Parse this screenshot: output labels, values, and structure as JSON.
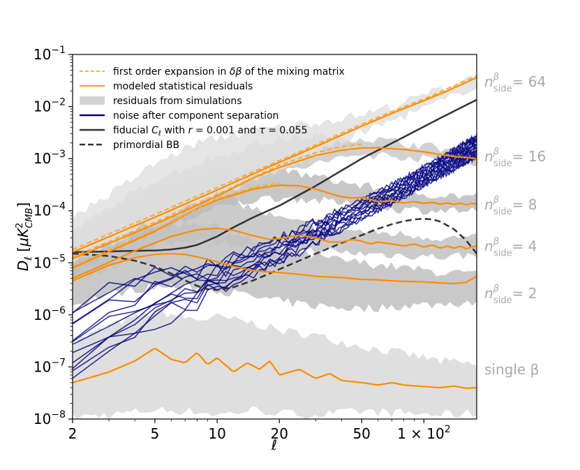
{
  "chart_data": {
    "type": "line",
    "title": "",
    "xlabel": "ℓ",
    "ylabel": "D_ℓ [μK²_CMB]",
    "ylabel_parts": {
      "main": "D",
      "sub1": "ℓ",
      "open": " [",
      "mu": "μ",
      "k": "K",
      "sup": "2",
      "sub2": "CMB",
      "close": "]"
    },
    "xscale": "log",
    "yscale": "log",
    "xlim": [
      2,
      180
    ],
    "ylim": [
      1e-08,
      0.1
    ],
    "x_ticks": [
      2,
      5,
      10,
      20,
      50,
      100
    ],
    "x_tick_labels": [
      "2",
      "5",
      "10",
      "20",
      "50",
      "1 × 10²"
    ],
    "x_tick_100": {
      "base": "1 × 10",
      "exp": "2"
    },
    "y_ticks": [
      1e-08,
      1e-07,
      1e-06,
      1e-05,
      0.0001,
      0.001,
      0.01,
      0.1
    ],
    "y_tick_labels": [
      {
        "base": "10",
        "exp": "−8"
      },
      {
        "base": "10",
        "exp": "−7"
      },
      {
        "base": "10",
        "exp": "−6"
      },
      {
        "base": "10",
        "exp": "−5"
      },
      {
        "base": "10",
        "exp": "−4"
      },
      {
        "base": "10",
        "exp": "−3"
      },
      {
        "base": "10",
        "exp": "−2"
      },
      {
        "base": "10",
        "exp": "−1"
      }
    ],
    "legend": {
      "position": "upper-left",
      "entries": [
        {
          "label_parts": [
            "first order expansion in ",
            "δβ",
            " of the mixing matrix"
          ],
          "style": "dashed",
          "color": "#ffa726"
        },
        {
          "label_parts": [
            "modeled statistical residuals"
          ],
          "style": "solid",
          "color": "#ff8c00"
        },
        {
          "label_parts": [
            "residuals from simulations"
          ],
          "style": "band",
          "color": "#d3d3d3"
        },
        {
          "label_parts": [
            "noise after component separation"
          ],
          "style": "solid",
          "color": "#000080"
        },
        {
          "label_parts": [
            "fiducial ",
            "C",
            "ℓ",
            " with ",
            "r",
            " = 0.001 and ",
            "τ",
            " = 0.055"
          ],
          "style": "solid",
          "color": "#333333"
        },
        {
          "label_parts": [
            "primordial BB"
          ],
          "style": "dashed",
          "color": "#333333"
        }
      ]
    },
    "right_labels": [
      {
        "prefix": "n",
        "sup": "β",
        "sub": "side",
        "value": "= 64",
        "y": 0.03
      },
      {
        "prefix": "n",
        "sup": "β",
        "sub": "side",
        "value": "= 16",
        "y": 0.0011
      },
      {
        "prefix": "n",
        "sup": "β",
        "sub": "side",
        "value": "= 8",
        "y": 0.00013
      },
      {
        "prefix": "n",
        "sup": "β",
        "sub": "side",
        "value": "= 4",
        "y": 2.1e-05
      },
      {
        "prefix": "n",
        "sup": "β",
        "sub": "side",
        "value": "= 2",
        "y": 2.6e-06
      },
      {
        "text": "single β",
        "y": 9e-08
      }
    ],
    "series": [
      {
        "name": "fiducial C_ell (r=0.001, tau=0.055)",
        "style": "solid",
        "color": "#333333",
        "width": 2.5,
        "x": [
          2,
          3,
          4,
          5,
          6,
          7,
          8,
          10,
          12,
          15,
          20,
          30,
          50,
          80,
          120,
          180
        ],
        "y": [
          1.6e-05,
          1.65e-05,
          1.7e-05,
          1.72e-05,
          1.8e-05,
          1.95e-05,
          2.2e-05,
          3.2e-05,
          4.8e-05,
          7.5e-05,
          0.000125,
          0.0003,
          0.001,
          0.0026,
          0.006,
          0.0135
        ]
      },
      {
        "name": "primordial BB",
        "style": "dashed",
        "color": "#333333",
        "width": 2.5,
        "x": [
          2,
          3,
          4,
          5,
          6,
          7,
          8,
          9,
          10,
          12,
          15,
          20,
          30,
          40,
          50,
          60,
          70,
          80,
          90,
          100,
          110,
          120,
          140,
          160,
          180
        ],
        "y": [
          1.5e-05,
          1.35e-05,
          1.1e-05,
          8.5e-06,
          6.2e-06,
          4.6e-06,
          3.6e-06,
          3.1e-06,
          3e-06,
          3.4e-06,
          4.6e-06,
          7.5e-06,
          1.5e-05,
          2.4e-05,
          3.4e-05,
          4.5e-05,
          5.5e-05,
          6.3e-05,
          6.8e-05,
          7e-05,
          6.8e-05,
          6.2e-05,
          4.4e-05,
          2.7e-05,
          1.5e-05
        ]
      },
      {
        "name": "modeled residuals nside=64",
        "style": "solid",
        "color": "#ff8c00",
        "width": 2.2,
        "x": [
          2,
          5,
          10,
          20,
          30,
          50,
          70,
          100,
          130,
          180
        ],
        "y": [
          1.6e-05,
          7.5e-05,
          0.00025,
          0.00085,
          0.0017,
          0.0042,
          0.0074,
          0.013,
          0.02,
          0.036
        ]
      },
      {
        "name": "first order expansion nside=64",
        "style": "dashed",
        "color": "#ffa726",
        "width": 2,
        "x": [
          2,
          5,
          10,
          20,
          30,
          50,
          70,
          100,
          130,
          180
        ],
        "y": [
          1.8e-05,
          8.5e-05,
          0.00028,
          0.00092,
          0.00185,
          0.0046,
          0.008,
          0.014,
          0.022,
          0.039
        ]
      },
      {
        "name": "modeled residuals nside=16",
        "style": "solid",
        "color": "#ff8c00",
        "width": 2.2,
        "x": [
          2,
          5,
          10,
          15,
          20,
          30,
          40,
          50,
          60,
          70,
          80,
          100,
          120,
          140,
          160,
          180
        ],
        "y": [
          1.2e-05,
          5.5e-05,
          0.00019,
          0.00043,
          0.00068,
          0.00115,
          0.00145,
          0.0016,
          0.00162,
          0.00155,
          0.0015,
          0.00135,
          0.0012,
          0.0011,
          0.00105,
          0.001
        ]
      },
      {
        "name": "first order expansion nside=16",
        "style": "dashed",
        "color": "#ffa726",
        "width": 2,
        "x": [
          2,
          5,
          10,
          20,
          30,
          40,
          50
        ],
        "y": [
          1.3e-05,
          6e-05,
          0.000205,
          0.00075,
          0.0013,
          0.0017,
          0.0019
        ]
      },
      {
        "name": "modeled residuals nside=8",
        "style": "solid",
        "color": "#ff8c00",
        "width": 2.2,
        "x": [
          2,
          5,
          8,
          10,
          15,
          20,
          25,
          30,
          35,
          40,
          45,
          50,
          55,
          60,
          70,
          80,
          90,
          100,
          110,
          120,
          130,
          140,
          150,
          160,
          170,
          180
        ],
        "y": [
          8e-06,
          4e-05,
          0.00011,
          0.00016,
          0.00026,
          0.00031,
          0.0003,
          0.00026,
          0.000215,
          0.000185,
          0.000175,
          0.00018,
          0.000165,
          0.00015,
          0.000155,
          0.00014,
          0.00015,
          0.000138,
          0.000145,
          0.000133,
          0.000142,
          0.000132,
          0.00014,
          0.00013,
          0.000138,
          0.000135
        ]
      },
      {
        "name": "first order expansion nside=8",
        "style": "dashed",
        "color": "#ffa726",
        "width": 2,
        "x": [
          2,
          5,
          10,
          15,
          20
        ],
        "y": [
          8.5e-06,
          4.3e-05,
          0.00017,
          0.00028,
          0.00034
        ]
      },
      {
        "name": "modeled residuals nside=4",
        "style": "solid",
        "color": "#ff8c00",
        "width": 2.2,
        "x": [
          2,
          4,
          6,
          8,
          10,
          12,
          15,
          18,
          20,
          25,
          30,
          35,
          40,
          45,
          50,
          55,
          60,
          70,
          80,
          90,
          100,
          110,
          120,
          130,
          140,
          150,
          160,
          170,
          180
        ],
        "y": [
          5e-06,
          1.7e-05,
          3.2e-05,
          4.3e-05,
          4.6e-05,
          4.2e-05,
          3.3e-05,
          2.8e-05,
          2.9e-05,
          3.4e-05,
          3e-05,
          2.5e-05,
          2.5e-05,
          2.8e-05,
          2.6e-05,
          2.3e-05,
          2.5e-05,
          2.3e-05,
          2.1e-05,
          2.3e-05,
          2e-05,
          2.2e-05,
          1.9e-05,
          2.1e-05,
          1.9e-05,
          2.1e-05,
          1.85e-05,
          2e-05,
          2.1e-05
        ]
      },
      {
        "name": "modeled residuals nside=2",
        "style": "solid",
        "color": "#ff8c00",
        "width": 2.2,
        "x": [
          2,
          3,
          4,
          5,
          6,
          7,
          8,
          10,
          12,
          15,
          20,
          25,
          30,
          40,
          50,
          60,
          70,
          80,
          100,
          120,
          140,
          160,
          180
        ],
        "y": [
          4.5e-06,
          9e-06,
          1.25e-05,
          1.45e-05,
          1.5e-05,
          1.45e-05,
          1.3e-05,
          1.05e-05,
          8.5e-06,
          7e-06,
          6.5e-06,
          6e-06,
          5.5e-06,
          5.2e-06,
          4.8e-06,
          4.7e-06,
          4.5e-06,
          4.4e-06,
          4.3e-06,
          4.1e-06,
          4e-06,
          4.2e-06,
          5.5e-06
        ]
      },
      {
        "name": "modeled residuals single beta",
        "style": "solid",
        "color": "#ff8c00",
        "width": 2.2,
        "x": [
          2,
          3,
          4,
          5,
          6,
          7,
          8,
          9,
          10,
          12,
          14,
          16,
          18,
          20,
          25,
          30,
          35,
          40,
          50,
          60,
          70,
          80,
          100,
          120,
          140,
          160,
          180
        ],
        "y": [
          5e-08,
          8e-08,
          1.3e-07,
          2.3e-07,
          1.4e-07,
          1.2e-07,
          1.9e-07,
          1.1e-07,
          1.5e-07,
          8e-08,
          1.2e-07,
          9e-08,
          1.3e-07,
          7e-08,
          9e-08,
          6e-08,
          7.5e-08,
          5.5e-08,
          5e-08,
          4.5e-08,
          5e-08,
          4.5e-08,
          4.2e-08,
          4e-08,
          4.3e-08,
          3.9e-08,
          4e-08
        ]
      }
    ],
    "bands": [
      {
        "name": "residuals from simulations (single beta)",
        "color": "#d9d9d9",
        "x": [
          2,
          3,
          5,
          8,
          10,
          15,
          20,
          30,
          50,
          80,
          120,
          180
        ],
        "lower": [
          1.1e-08,
          1.2e-08,
          1.5e-08,
          1.4e-08,
          1.2e-08,
          1.5e-08,
          1.3e-08,
          1.2e-08,
          1.4e-08,
          1.3e-08,
          1.2e-08,
          1.3e-08
        ],
        "upper": [
          3e-07,
          6e-07,
          1.2e-06,
          8e-07,
          9e-07,
          7e-07,
          5e-07,
          4e-07,
          2.5e-07,
          1.8e-07,
          1.3e-07,
          1.1e-07
        ]
      },
      {
        "name": "residuals from simulations (nside=2)",
        "color": "#bfbfbf",
        "x": [
          2,
          3,
          5,
          8,
          10,
          15,
          20,
          30,
          50,
          80,
          120,
          180
        ],
        "lower": [
          1.5e-06,
          2.5e-06,
          3.5e-06,
          3.2e-06,
          3e-06,
          2.2e-06,
          1.8e-06,
          1.5e-06,
          1.3e-06,
          1.5e-06,
          1.6e-06,
          1.8e-06
        ],
        "upper": [
          2e-05,
          3e-05,
          5e-05,
          6e-05,
          5e-05,
          2.5e-05,
          1.8e-05,
          1.3e-05,
          1e-05,
          8e-06,
          6.5e-06,
          6e-06
        ]
      },
      {
        "name": "residuals from simulations (nside=4)",
        "color": "#c2c2c2",
        "x": [
          2,
          3,
          5,
          8,
          10,
          15,
          20,
          30,
          50,
          80,
          120,
          180
        ],
        "lower": [
          4e-06,
          8e-06,
          2e-05,
          3e-05,
          2.5e-05,
          2e-05,
          1.8e-05,
          1.7e-05,
          1.5e-05,
          1.4e-05,
          1.3e-05,
          1.4e-05
        ],
        "upper": [
          3e-05,
          6e-05,
          0.00015,
          0.00025,
          0.0002,
          0.00011,
          7e-05,
          5e-05,
          4e-05,
          3.5e-05,
          3e-05,
          3e-05
        ]
      },
      {
        "name": "residuals from simulations (nside=8)",
        "color": "#bdbdbd",
        "x": [
          2,
          3,
          5,
          8,
          10,
          15,
          20,
          30,
          50,
          80,
          120,
          180
        ],
        "lower": [
          6e-06,
          1.5e-05,
          4e-05,
          8e-05,
          0.00011,
          0.00016,
          0.00018,
          0.00016,
          0.00012,
          0.000105,
          0.0001,
          0.0001
        ],
        "upper": [
          3.5e-05,
          9e-05,
          0.00025,
          0.0005,
          0.00065,
          0.0007,
          0.0006,
          0.00045,
          0.0003,
          0.00023,
          0.0002,
          0.00019
        ]
      },
      {
        "name": "residuals from simulations (nside=16)",
        "color": "#c9c9c9",
        "x": [
          2,
          3,
          5,
          8,
          10,
          15,
          20,
          30,
          50,
          80,
          120,
          180
        ],
        "lower": [
          8e-06,
          2e-05,
          5e-05,
          0.00012,
          0.00016,
          0.00032,
          0.0005,
          0.0008,
          0.0012,
          0.0011,
          0.0009,
          0.0008
        ],
        "upper": [
          4e-05,
          0.00011,
          0.0004,
          0.0008,
          0.0011,
          0.0018,
          0.0023,
          0.0027,
          0.0025,
          0.002,
          0.0016,
          0.0014
        ]
      },
      {
        "name": "residuals from simulations (nside=64)",
        "color": "#e0e0e0",
        "x": [
          2,
          3,
          5,
          8,
          10,
          15,
          20,
          30,
          50,
          80,
          120,
          180
        ],
        "lower": [
          1e-05,
          2.5e-05,
          6e-05,
          0.00014,
          0.0002,
          0.00038,
          0.0006,
          0.0012,
          0.0032,
          0.0065,
          0.012,
          0.026
        ],
        "upper": [
          8e-05,
          0.0002,
          0.0008,
          0.002,
          0.0025,
          0.0035,
          0.004,
          0.005,
          0.007,
          0.012,
          0.022,
          0.042
        ]
      }
    ],
    "noise": {
      "name": "noise after component separation",
      "color": "#000080",
      "realizations": 12,
      "band_x": [
        2,
        3,
        4,
        5,
        6,
        8,
        10,
        15,
        20,
        30,
        50,
        80,
        120,
        180
      ],
      "band_lower": [
        5e-08,
        1.5e-07,
        3e-07,
        6e-07,
        9e-07,
        1.6e-06,
        2.5e-06,
        5.5e-06,
        1e-05,
        2.2e-05,
        6.5e-05,
        0.00017,
        0.00042,
        0.001
      ],
      "band_upper": [
        1.5e-06,
        3.5e-06,
        6e-06,
        8e-06,
        9e-06,
        1.1e-05,
        1.3e-05,
        2e-05,
        3.2e-05,
        6.5e-05,
        0.00017,
        0.00045,
        0.0011,
        0.003
      ]
    }
  }
}
